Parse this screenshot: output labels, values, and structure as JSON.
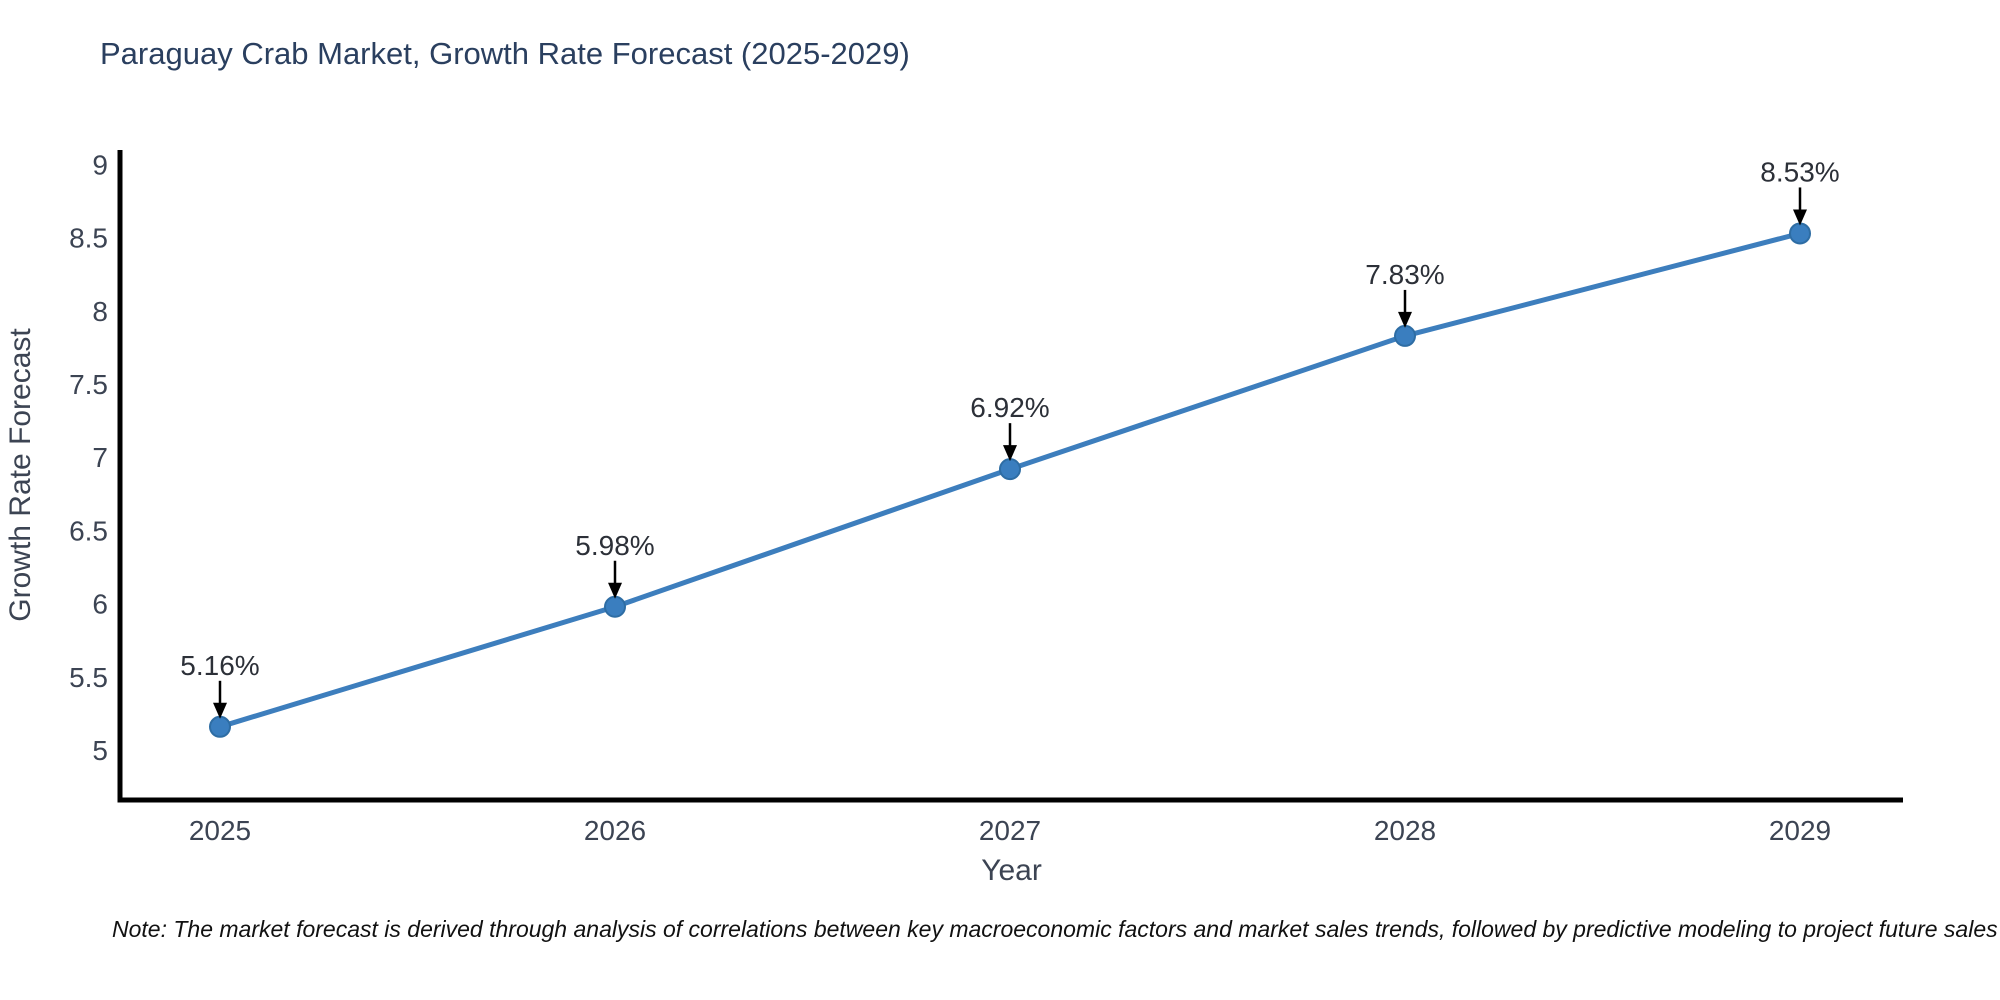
{
  "title": "Paraguay Crab Market, Growth Rate Forecast (2025-2029)",
  "note": "Note: The market forecast is derived through analysis of correlations between key macroeconomic factors and market sales trends, followed by predictive modeling to project future sales",
  "chart_data": {
    "type": "line",
    "title": "Paraguay Crab Market, Growth Rate Forecast (2025-2029)",
    "xlabel": "Year",
    "ylabel": "Growth Rate Forecast",
    "categories": [
      "2025",
      "2026",
      "2027",
      "2028",
      "2029"
    ],
    "series": [
      {
        "name": "Growth Rate Forecast",
        "values": [
          5.16,
          5.98,
          6.92,
          7.83,
          8.53
        ],
        "point_labels": [
          "5.16%",
          "5.98%",
          "6.92%",
          "7.83%",
          "8.53%"
        ]
      }
    ],
    "yticks": [
      5,
      5.5,
      6,
      6.5,
      7,
      7.5,
      8,
      8.5,
      9
    ],
    "ylim": [
      4.66,
      9.1
    ],
    "grid": false,
    "legend_position": "none",
    "annotation_style": "text-with-down-arrow",
    "colors": {
      "line": "#3d7ebd",
      "marker_fill": "#3a7ebf",
      "marker_edge": "#2e6da4",
      "axis_line": "#000000",
      "arrow": "#000000",
      "title_text": "#2a3f5f",
      "tick_text": "#3c4453",
      "annotation_text": "#2c3038",
      "background": "#ffffff"
    }
  }
}
